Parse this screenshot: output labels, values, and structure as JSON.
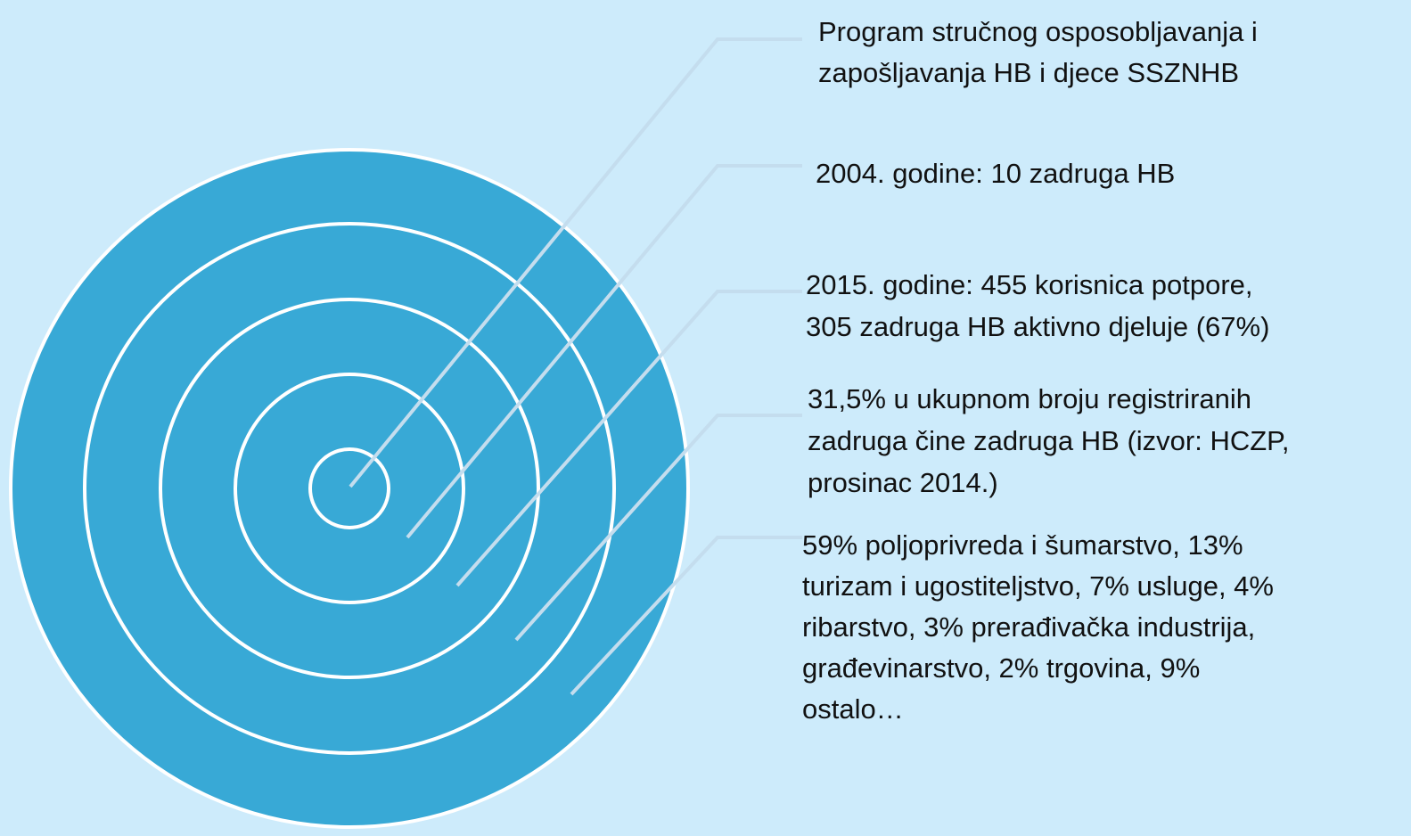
{
  "items": [
    {
      "lines": [
        "Program stručnog osposobljavanja i",
        "zapošljavanja HB i djece SSZNHB"
      ]
    },
    {
      "lines": [
        "2004. godine: 10 zadruga HB"
      ]
    },
    {
      "lines": [
        "2015. godine: 455 korisnica potpore,",
        "305 zadruga HB aktivno djeluje (67%)"
      ]
    },
    {
      "lines": [
        "31,5% u ukupnom broju registriranih",
        "zadruga čine zadruga HB (izvor: HCZP,",
        "prosinac 2014.)"
      ]
    },
    {
      "lines": [
        "59% poljoprivreda i šumarstvo, 13%",
        "turizam i ugostiteljstvo, 7% usluge, 4%",
        "ribarstvo, 3% prerađivačka industrija,",
        "građevinarstvo, 2% trgovina, 9%",
        "ostalo…"
      ]
    }
  ]
}
